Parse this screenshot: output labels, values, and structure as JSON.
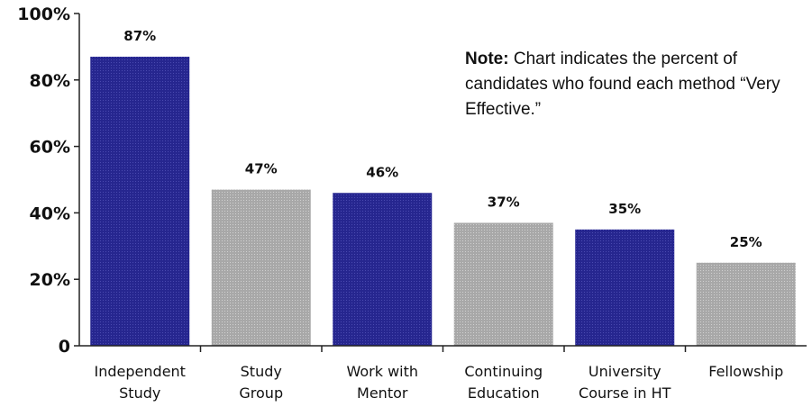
{
  "chart_data": {
    "type": "bar",
    "categories": [
      [
        "Independent",
        "Study"
      ],
      [
        "Study",
        "Group"
      ],
      [
        "Work with",
        "Mentor"
      ],
      [
        "Continuing",
        "Education"
      ],
      [
        "University",
        "Course in HT"
      ],
      [
        "Fellowship"
      ]
    ],
    "values": [
      87,
      47,
      46,
      37,
      35,
      25
    ],
    "data_labels": [
      "87%",
      "47%",
      "46%",
      "37%",
      "35%",
      "25%"
    ],
    "bar_colors": [
      "#26268f",
      "#a8a8a8",
      "#26268f",
      "#a8a8a8",
      "#26268f",
      "#a8a8a8"
    ],
    "ylim": [
      0,
      100
    ],
    "yticks": [
      0,
      20,
      40,
      60,
      80,
      100
    ],
    "ytick_labels": [
      "0",
      "20%",
      "40%",
      "60%",
      "80%",
      "100%"
    ],
    "grid": false,
    "legend": "none"
  },
  "note": {
    "label": "Note:",
    "text": "Chart indicates the percent of candidates who found each method “Very Effective.”"
  },
  "colors": {
    "axis": "#222222",
    "blue": "#26268f",
    "gray": "#a8a8a8"
  }
}
